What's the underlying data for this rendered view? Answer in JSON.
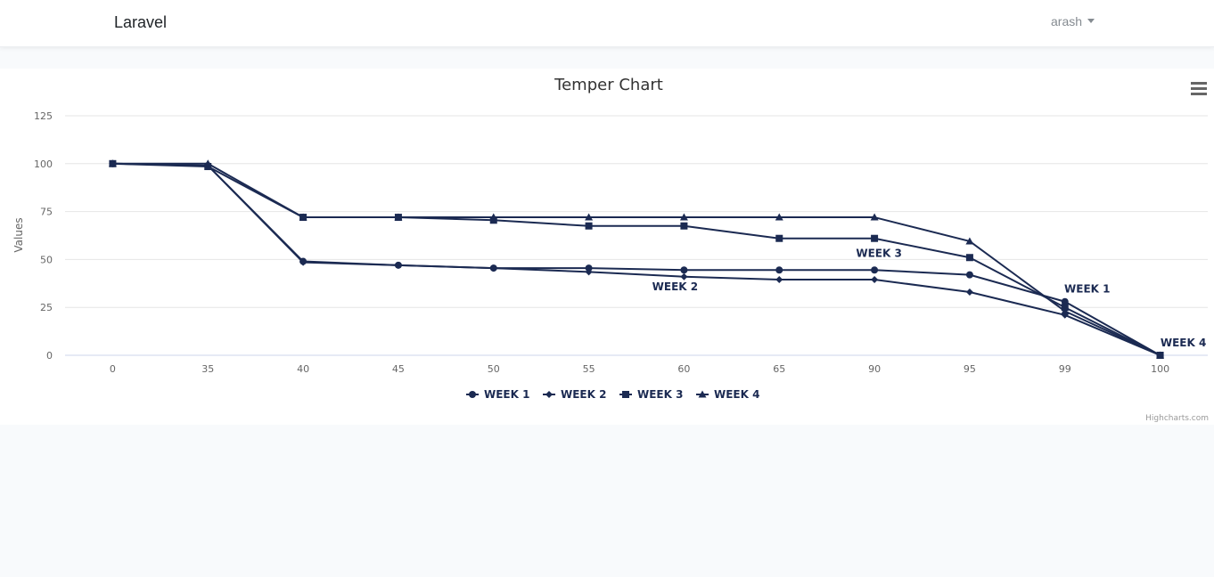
{
  "navbar": {
    "brand": "Laravel",
    "user": "arash"
  },
  "chart_data": {
    "type": "line",
    "title": "Temper Chart",
    "xlabel": "",
    "ylabel": "Values",
    "categories": [
      "0",
      "35",
      "40",
      "45",
      "50",
      "55",
      "60",
      "65",
      "90",
      "95",
      "99",
      "100"
    ],
    "ylim": [
      0,
      125
    ],
    "yticks": [
      0,
      25,
      50,
      75,
      100,
      125
    ],
    "grid": true,
    "legend_position": "bottom-center",
    "series": [
      {
        "name": "WEEK 1",
        "marker": "circle",
        "values": [
          100,
          99,
          49,
          47,
          45.5,
          45.5,
          44.5,
          44.5,
          44.5,
          42,
          28,
          0
        ]
      },
      {
        "name": "WEEK 2",
        "marker": "diamond",
        "values": [
          100,
          99,
          48.5,
          47,
          45.5,
          43.5,
          41,
          39.5,
          39.5,
          33,
          21,
          0
        ]
      },
      {
        "name": "WEEK 3",
        "marker": "square",
        "values": [
          100,
          98.5,
          72,
          72,
          70.5,
          67.5,
          67.5,
          61,
          61,
          51,
          25,
          0
        ]
      },
      {
        "name": "WEEK 4",
        "marker": "triangle",
        "values": [
          100,
          100,
          72,
          72,
          72,
          72,
          72,
          72,
          72,
          59.5,
          23,
          0
        ]
      }
    ],
    "annotations": [
      {
        "text": "WEEK 1",
        "series": 0,
        "index": 10
      },
      {
        "text": "WEEK 2",
        "series": 1,
        "index": 6
      },
      {
        "text": "WEEK 3",
        "series": 2,
        "index": 8
      },
      {
        "text": "WEEK 4",
        "series": 3,
        "index": 11
      }
    ],
    "credits": "Highcharts.com",
    "colors": {
      "series": "#1b2a52",
      "grid": "#e6e6e6",
      "axis_text": "#666666",
      "title": "#333333"
    }
  }
}
